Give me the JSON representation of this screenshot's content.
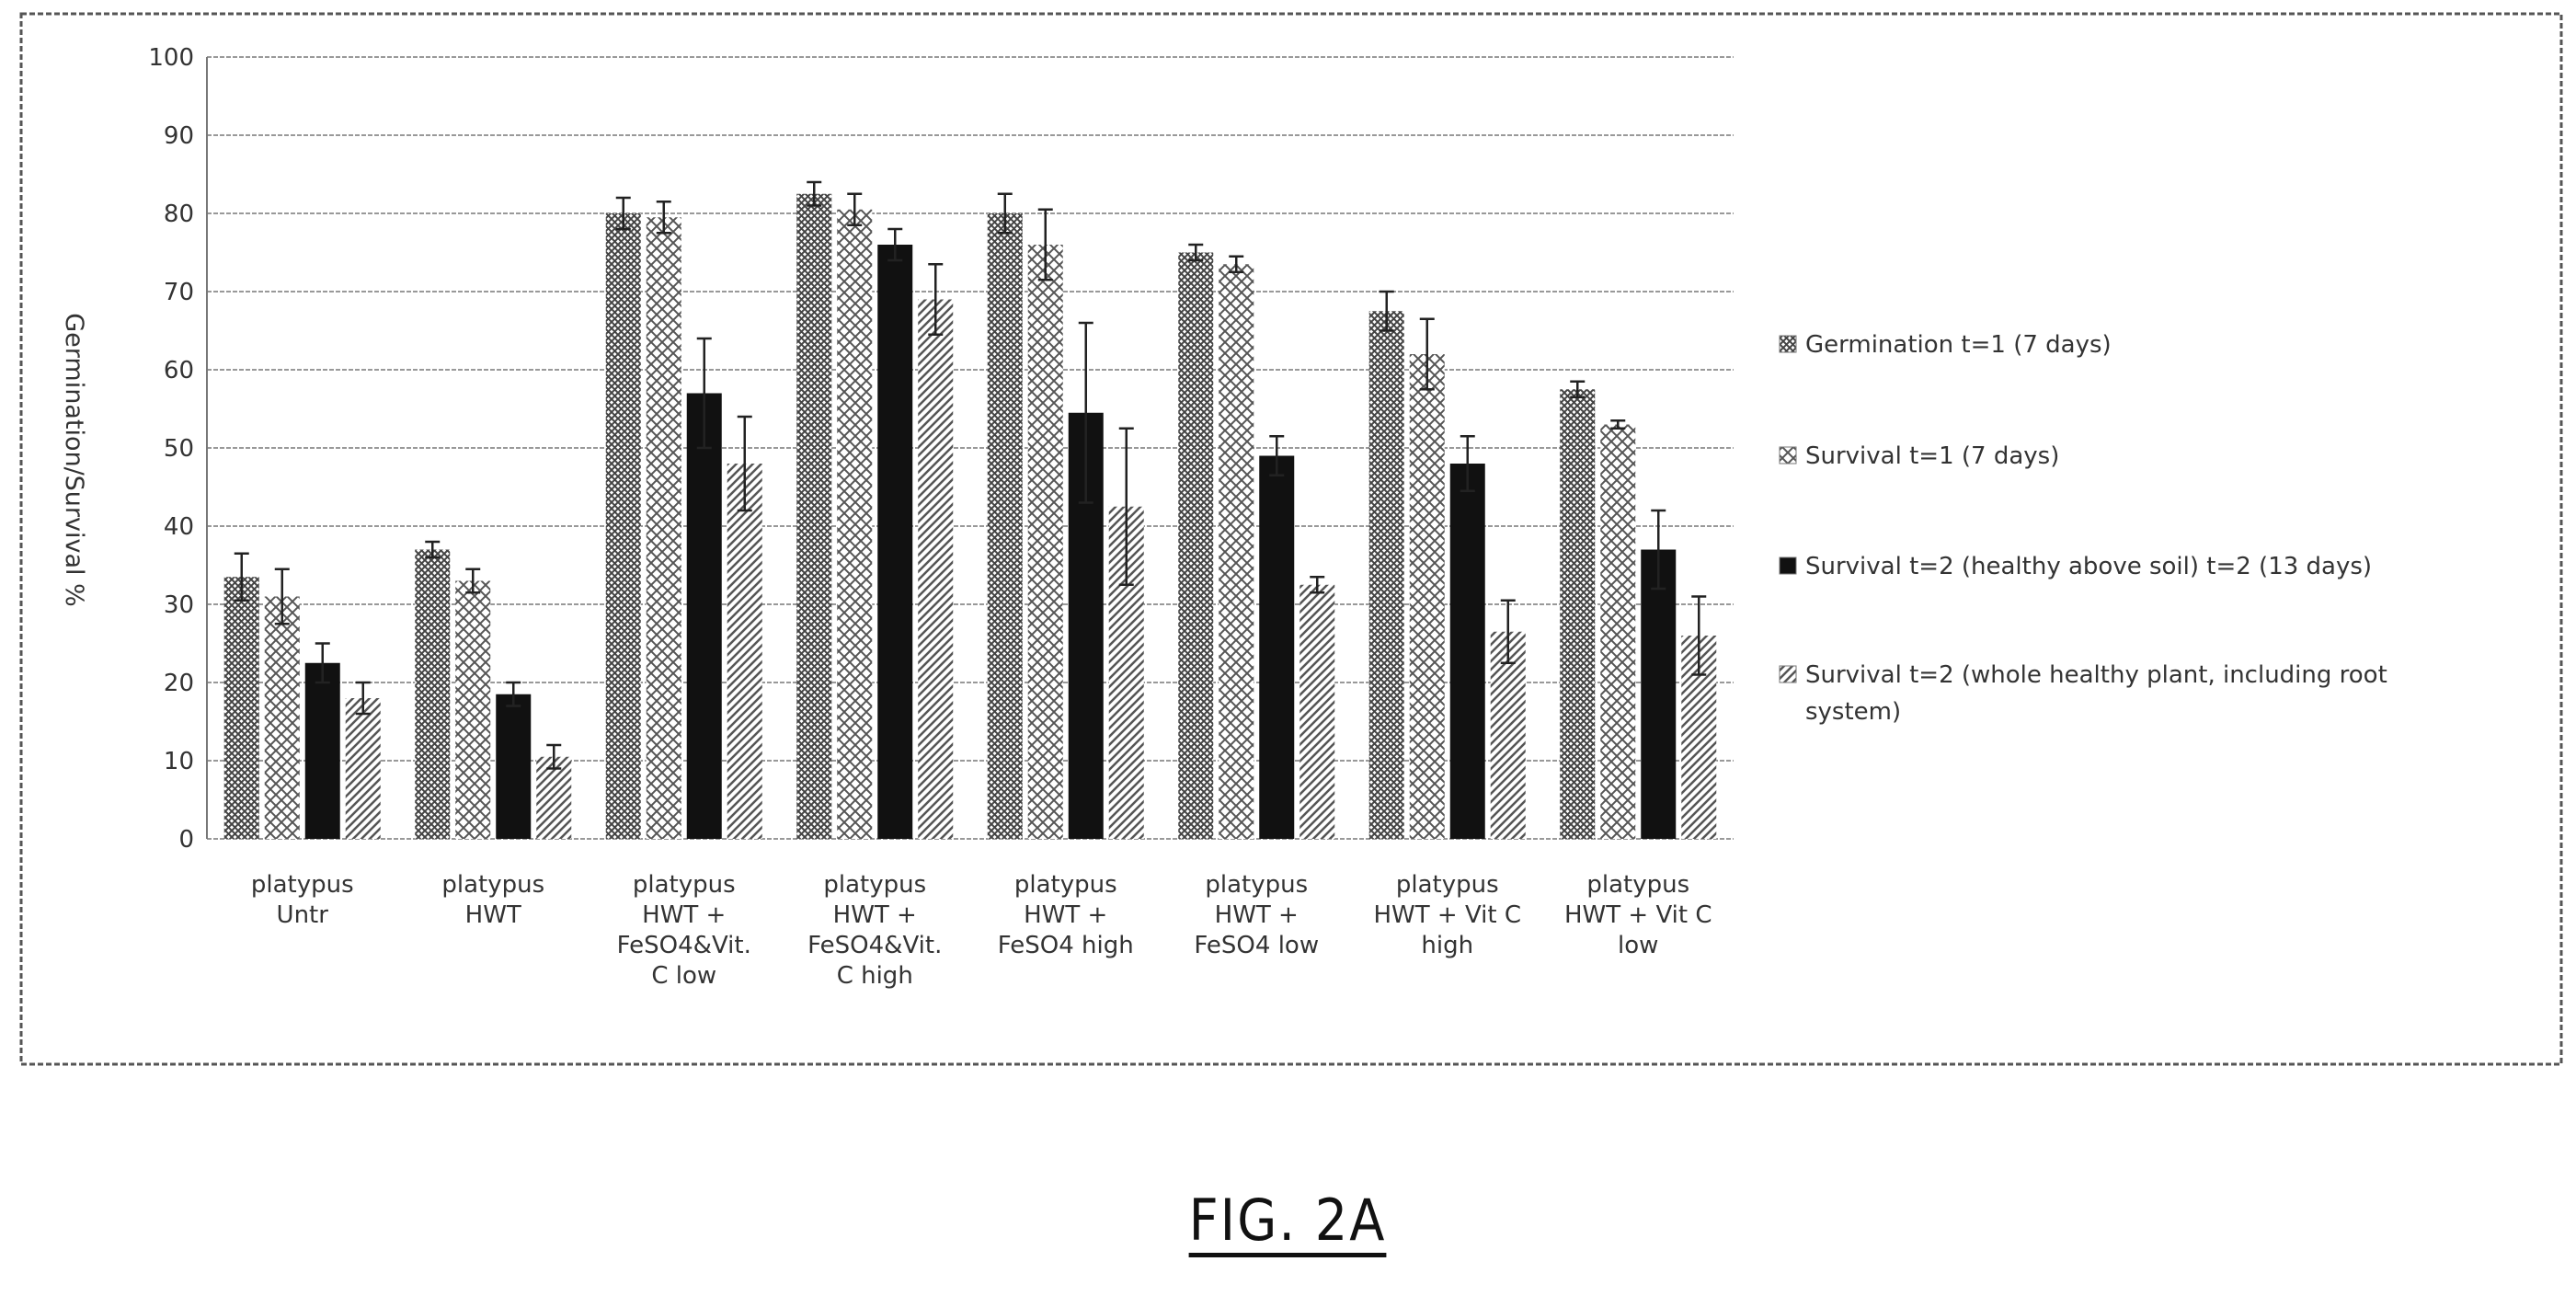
{
  "figure_label": "FIG. 2A",
  "colors": {
    "germination": "#555555",
    "survival_t1": "#666666",
    "survival_t2_healthy": "#111111",
    "survival_t2_whole": "#777777",
    "grid": "#999999",
    "error_bar": "#222222"
  },
  "chart_data": {
    "type": "bar",
    "ylabel": "Germination/Survival %",
    "xlabel": "",
    "ylim": [
      0,
      100
    ],
    "yticks": [
      0,
      10,
      20,
      30,
      40,
      50,
      60,
      70,
      80,
      90,
      100
    ],
    "grid": true,
    "legend_position": "right",
    "categories": [
      [
        "platypus",
        "Untr"
      ],
      [
        "platypus",
        "HWT"
      ],
      [
        "platypus",
        "HWT +",
        "FeSO4&Vit.",
        "C low"
      ],
      [
        "platypus",
        "HWT +",
        "FeSO4&Vit.",
        "C high"
      ],
      [
        "platypus",
        "HWT +",
        "FeSO4 high"
      ],
      [
        "platypus",
        "HWT +",
        "FeSO4 low"
      ],
      [
        "platypus",
        "HWT + Vit C",
        "high"
      ],
      [
        "platypus",
        "HWT + Vit C",
        "low"
      ]
    ],
    "series": [
      {
        "name": "Germination t=1 (7 days)",
        "legend_lines": [
          "Germination t=1 (7 days)"
        ],
        "pattern": "crosshatch-dense",
        "values": [
          33.5,
          37,
          80,
          82.5,
          80,
          75,
          67.5,
          57.5
        ],
        "errors": [
          3,
          1,
          2,
          1.5,
          2.5,
          1,
          2.5,
          1
        ]
      },
      {
        "name": "Survival t=1 (7 days)",
        "legend_lines": [
          "Survival t=1 (7 days)"
        ],
        "pattern": "crosshatch",
        "values": [
          31,
          33,
          79.5,
          80.5,
          76,
          73.5,
          62,
          53
        ],
        "errors": [
          3.5,
          1.5,
          2,
          2,
          4.5,
          1,
          4.5,
          0.5
        ]
      },
      {
        "name": "Survival t=2 (healthy above soil) t=2 (13 days)",
        "legend_lines": [
          "Survival t=2 (healthy above soil) t=2 (13 days)"
        ],
        "pattern": "solid",
        "values": [
          22.5,
          18.5,
          57,
          76,
          54.5,
          49,
          48,
          37
        ],
        "errors": [
          2.5,
          1.5,
          7,
          2,
          11.5,
          2.5,
          3.5,
          5
        ]
      },
      {
        "name": "Survival t=2 (whole healthy plant, including root system)",
        "legend_lines": [
          "Survival t=2 (whole healthy plant, including root",
          "system)"
        ],
        "pattern": "diagonal",
        "values": [
          18,
          10.5,
          48,
          69,
          42.5,
          32.5,
          26.5,
          26
        ],
        "errors": [
          2,
          1.5,
          6,
          4.5,
          10,
          1,
          4,
          5
        ]
      }
    ]
  }
}
